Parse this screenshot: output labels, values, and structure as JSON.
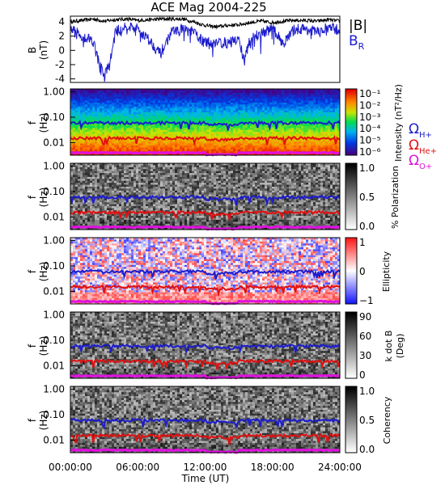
{
  "chart_data": {
    "type": "multi-panel spectrogram",
    "title": "ACE Mag 2004-225",
    "x_axis": {
      "label": "Time (UT)",
      "range_hours": [
        0,
        24
      ],
      "tick_labels": [
        "00:00:00",
        "06:00:00",
        "12:00:00",
        "18:00:00",
        "24:00:00"
      ]
    },
    "panels": [
      {
        "name": "field",
        "type": "line",
        "ylabel_top": "B",
        "ylabel_bottom": "(nT)",
        "ylim": [
          -4.5,
          4.8
        ],
        "y_ticks": [
          "4",
          "2",
          "0",
          "-2",
          "-4"
        ],
        "legend": [
          {
            "label": "|B|",
            "color": "#000000"
          },
          {
            "label": "B",
            "sub": "R",
            "color": "#1c1ccc"
          }
        ],
        "series": [
          {
            "name": "|B|",
            "color": "#000000",
            "x_hours": [
              0,
              1,
              2,
              3,
              4,
              5,
              6,
              7,
              8,
              9,
              10,
              11,
              12,
              13,
              14,
              15,
              16,
              17,
              18,
              19,
              20,
              21,
              22,
              23,
              24
            ],
            "values": [
              4.0,
              4.2,
              4.4,
              4.1,
              4.3,
              4.4,
              4.2,
              4.3,
              4.4,
              4.4,
              4.4,
              4.0,
              3.5,
              3.3,
              3.5,
              3.6,
              3.9,
              4.1,
              3.9,
              4.1,
              4.2,
              4.2,
              4.1,
              4.3,
              4.1
            ]
          },
          {
            "name": "B_R",
            "color": "#1c1ccc",
            "x_hours": [
              0,
              1,
              2,
              2.5,
              3,
              3.5,
              4,
              5,
              6,
              7,
              8,
              9,
              10,
              11,
              12,
              13,
              14,
              15,
              15.5,
              16,
              17,
              18,
              19,
              20,
              21,
              22,
              23,
              24
            ],
            "values": [
              3.0,
              2.0,
              1.5,
              -1.5,
              -3.5,
              -2.0,
              2.5,
              3.5,
              3.0,
              1.5,
              -0.5,
              2.5,
              3.0,
              2.5,
              1.0,
              1.2,
              1.0,
              1.5,
              -1.5,
              1.5,
              2.5,
              3.0,
              1.0,
              3.0,
              3.0,
              2.5,
              3.2,
              2.8
            ]
          }
        ]
      },
      {
        "name": "intensity",
        "type": "heatmap",
        "scheme": "rainbow",
        "ylabel_top": "f",
        "ylabel_bottom": "(Hz)",
        "y_ticks": [
          "1.00",
          "0.10",
          "0.01"
        ],
        "colorbar_label": "Intensity (nT²/Hz)",
        "colorbar_ticks": [
          "10⁻¹",
          "10⁻²",
          "10⁻³",
          "10⁻⁴",
          "10⁻⁵",
          "10⁻⁶"
        ]
      },
      {
        "name": "polarization",
        "type": "heatmap",
        "scheme": "gray",
        "ylabel_top": "f",
        "ylabel_bottom": "(Hz)",
        "y_ticks": [
          "1.00",
          "0.10",
          "0.01"
        ],
        "colorbar_label": "% Polarization",
        "colorbar_ticks": [
          "1.0",
          "0.5",
          "0.0"
        ]
      },
      {
        "name": "ellipticity",
        "type": "heatmap",
        "scheme": "redblue",
        "ylabel_top": "f",
        "ylabel_bottom": "(Hz)",
        "y_ticks": [
          "1.00",
          "0.10",
          "0.01"
        ],
        "colorbar_label": "Ellipticity",
        "colorbar_ticks": [
          "1",
          "0",
          "−1"
        ]
      },
      {
        "name": "kdotb",
        "type": "heatmap",
        "scheme": "gray",
        "ylabel_top": "f",
        "ylabel_bottom": "(Hz)",
        "y_ticks": [
          "1.00",
          "0.10",
          "0.01"
        ],
        "colorbar_label": "k dot B",
        "colorbar_label2": "(Deg)",
        "colorbar_ticks": [
          "90",
          "60",
          "30",
          "0"
        ]
      },
      {
        "name": "coherency",
        "type": "heatmap",
        "scheme": "gray",
        "ylabel_top": "f",
        "ylabel_bottom": "(Hz)",
        "y_ticks": [
          "1.00",
          "0.10",
          "0.01"
        ],
        "colorbar_label": "Coherency",
        "colorbar_ticks": [
          "1.0",
          "0.5",
          "0.0"
        ]
      }
    ],
    "cyclotron_lines": [
      {
        "label": "Ω",
        "sub": "H+",
        "color": "#1c1ccc",
        "approx_freq_hz": 0.06
      },
      {
        "label": "Ω",
        "sub": "He+",
        "color": "#e01010",
        "approx_freq_hz": 0.015
      },
      {
        "label": "Ω",
        "sub": "O+",
        "color": "#e010e0",
        "approx_freq_hz": 0.004
      }
    ]
  }
}
